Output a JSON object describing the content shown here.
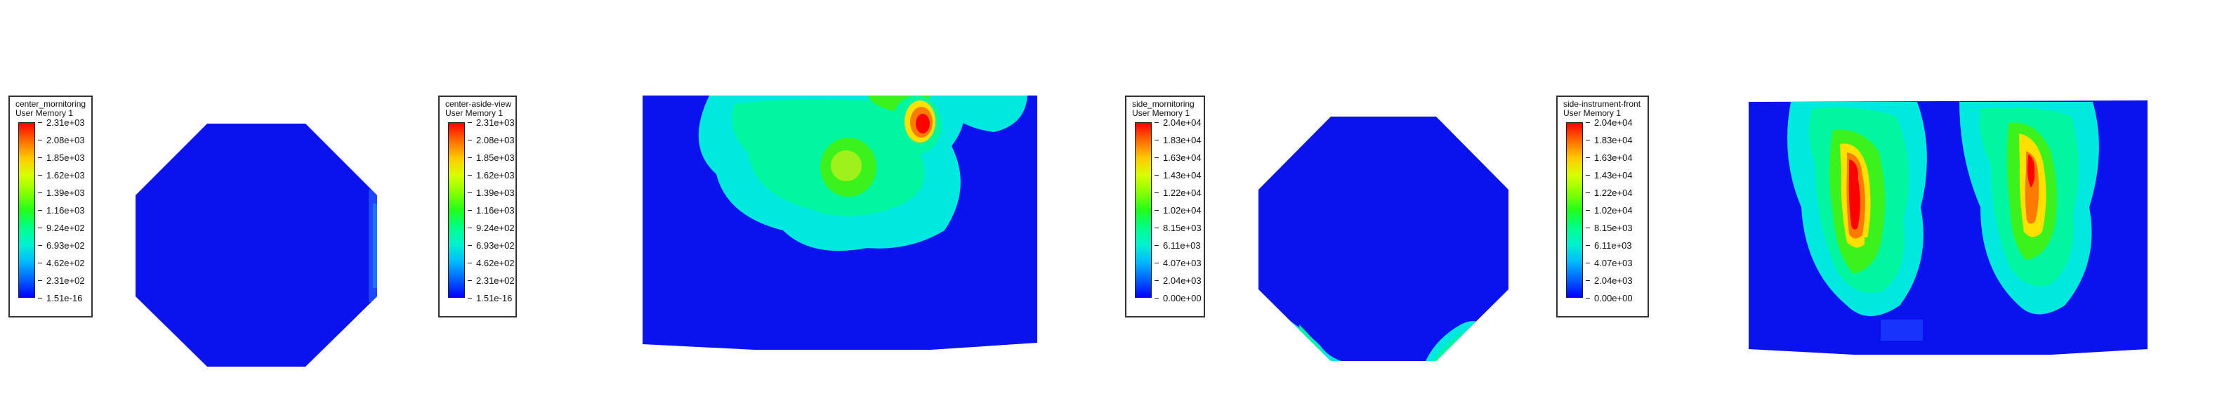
{
  "legends": [
    {
      "title": "center_mornitoring",
      "variable": "User Memory 1",
      "ticks": [
        "2.31e+03",
        "2.08e+03",
        "1.85e+03",
        "1.62e+03",
        "1.39e+03",
        "1.16e+03",
        "9.24e+02",
        "6.93e+02",
        "4.62e+02",
        "2.31e+02",
        "1.51e-16"
      ]
    },
    {
      "title": "center-aside-view",
      "variable": "User Memory 1",
      "ticks": [
        "2.31e+03",
        "2.08e+03",
        "1.85e+03",
        "1.62e+03",
        "1.39e+03",
        "1.16e+03",
        "9.24e+02",
        "6.93e+02",
        "4.62e+02",
        "2.31e+02",
        "1.51e-16"
      ]
    },
    {
      "title": "side_mornitoring",
      "variable": "User Memory 1",
      "ticks": [
        "2.04e+04",
        "1.83e+04",
        "1.63e+04",
        "1.43e+04",
        "1.22e+04",
        "1.02e+04",
        "8.15e+03",
        "6.11e+03",
        "4.07e+03",
        "2.04e+03",
        "0.00e+00"
      ]
    },
    {
      "title": "side-instrument-front",
      "variable": "User Memory 1",
      "ticks": [
        "2.04e+04",
        "1.83e+04",
        "1.63e+04",
        "1.43e+04",
        "1.22e+04",
        "1.02e+04",
        "8.15e+03",
        "6.11e+03",
        "4.07e+03",
        "2.04e+03",
        "0.00e+00"
      ]
    }
  ],
  "colors": {
    "background": "#ffffff",
    "base_blue": "#0a12ee",
    "cyan": "#00e8e0",
    "aqua": "#00f7a0",
    "green": "#3cf21e",
    "yellow": "#ffe000",
    "orange": "#ff7a00",
    "red": "#ff0000"
  }
}
